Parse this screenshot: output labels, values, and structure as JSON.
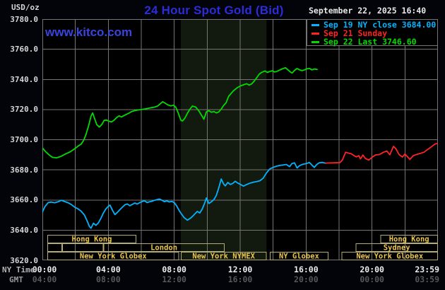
{
  "header": {
    "title": "24 Hour Spot Gold (Bid)",
    "site": "www.kitco.com"
  },
  "legend": {
    "date": "September 22, 2025 16:40",
    "entries": [
      {
        "label": "Sep 19 NY close 3684.00",
        "series": "sep19"
      },
      {
        "label": "Sep 21 Sunday",
        "series": "sep21"
      },
      {
        "label": "Sep 22 Last 3746.60",
        "series": "sep22"
      }
    ]
  },
  "y_axis": {
    "unit": "USD/oz",
    "min": 3620,
    "max": 3780,
    "step": 20
  },
  "x_axis": {
    "hours_span": 24,
    "grid_step_hours": 2,
    "label_hours": [
      0,
      4,
      8,
      12,
      16,
      20,
      24
    ],
    "rows": [
      {
        "caption": "NY Time",
        "labels": [
          "00:00",
          "04:00",
          "08:00",
          "12:00",
          "16:00",
          "20:00",
          "23:59"
        ]
      },
      {
        "caption": "GMT",
        "labels": [
          "04:00",
          "08:00",
          "12:00",
          "16:00",
          "20:00",
          "00:00",
          "03:59"
        ]
      }
    ]
  },
  "sessions": {
    "rows": [
      {
        "boxes": [
          {
            "label": "Hong Kong",
            "start": 0.3,
            "end": 5.7
          },
          {
            "label": "Hong Kong",
            "start": 20.5,
            "end": 24
          }
        ]
      },
      {
        "boxes": [
          {
            "label": "",
            "start": 0.3,
            "end": 1.2
          },
          {
            "label": "",
            "start": 1.2,
            "end": 3.7
          },
          {
            "label": "London",
            "start": 3.7,
            "end": 11.05
          },
          {
            "label": "Sydney",
            "start": 19.0,
            "end": 24
          }
        ]
      },
      {
        "boxes": [
          {
            "label": "New York Globex",
            "start": 0.3,
            "end": 8.3
          },
          {
            "label": "New York NYMEX",
            "start": 8.4,
            "end": 13.6
          },
          {
            "label": "NY Globex",
            "start": 13.8,
            "end": 17.35
          },
          {
            "label": "New York Globex",
            "start": 18.15,
            "end": 24
          }
        ]
      }
    ]
  },
  "highlight_band": {
    "start_hour": 8.4,
    "end_hour": 13.6
  },
  "chart_data": {
    "type": "line",
    "title": "24 Hour Spot Gold (Bid)",
    "ylabel": "USD/oz",
    "xlabel": "NY Time (hours)",
    "x_range": [
      0,
      24
    ],
    "y_range": [
      3620,
      3780
    ],
    "grid": true,
    "legend_position": "top-right",
    "series": [
      {
        "name": "Sep 19 NY close",
        "close_value": 3684.0,
        "color_key": "sep19",
        "points": [
          [
            0,
            3652
          ],
          [
            0.15,
            3655.5
          ],
          [
            0.35,
            3658.3
          ],
          [
            0.55,
            3658.6
          ],
          [
            0.75,
            3658.2
          ],
          [
            0.95,
            3658.8
          ],
          [
            1.15,
            3659.8
          ],
          [
            1.35,
            3659
          ],
          [
            1.55,
            3658.2
          ],
          [
            1.75,
            3657
          ],
          [
            1.95,
            3655.3
          ],
          [
            2.15,
            3654.2
          ],
          [
            2.35,
            3652.6
          ],
          [
            2.55,
            3650
          ],
          [
            2.7,
            3646.5
          ],
          [
            2.85,
            3642.5
          ],
          [
            2.95,
            3641.3
          ],
          [
            3.1,
            3644.6
          ],
          [
            3.25,
            3643.2
          ],
          [
            3.4,
            3644.8
          ],
          [
            3.55,
            3647.8
          ],
          [
            3.7,
            3651.3
          ],
          [
            3.85,
            3654
          ],
          [
            4,
            3655.8
          ],
          [
            4.1,
            3656.6
          ],
          [
            4.25,
            3653.2
          ],
          [
            4.4,
            3650.3
          ],
          [
            4.55,
            3651.8
          ],
          [
            4.7,
            3653.6
          ],
          [
            4.85,
            3655.2
          ],
          [
            5,
            3656.8
          ],
          [
            5.15,
            3657.4
          ],
          [
            5.3,
            3656.2
          ],
          [
            5.45,
            3657
          ],
          [
            5.6,
            3658
          ],
          [
            5.75,
            3657.3
          ],
          [
            5.9,
            3658.2
          ],
          [
            6.05,
            3659
          ],
          [
            6.2,
            3659.5
          ],
          [
            6.35,
            3658.3
          ],
          [
            6.5,
            3658.8
          ],
          [
            6.65,
            3659.2
          ],
          [
            6.8,
            3659.8
          ],
          [
            6.95,
            3660.2
          ],
          [
            7.1,
            3660.6
          ],
          [
            7.25,
            3659.9
          ],
          [
            7.4,
            3658.9
          ],
          [
            7.55,
            3659.4
          ],
          [
            7.7,
            3658.7
          ],
          [
            7.85,
            3659.1
          ],
          [
            8,
            3658.3
          ],
          [
            8.15,
            3656
          ],
          [
            8.3,
            3653
          ],
          [
            8.45,
            3650.5
          ],
          [
            8.6,
            3648.3
          ],
          [
            8.8,
            3646.6
          ],
          [
            9,
            3648
          ],
          [
            9.2,
            3650.2
          ],
          [
            9.4,
            3652.4
          ],
          [
            9.55,
            3651.4
          ],
          [
            9.7,
            3654
          ],
          [
            9.85,
            3658
          ],
          [
            9.95,
            3661.4
          ],
          [
            10.1,
            3657.7
          ],
          [
            10.25,
            3658.8
          ],
          [
            10.4,
            3660.2
          ],
          [
            10.55,
            3663
          ],
          [
            10.7,
            3668
          ],
          [
            10.85,
            3673.9
          ],
          [
            11,
            3670.5
          ],
          [
            11.1,
            3669.4
          ],
          [
            11.25,
            3671.6
          ],
          [
            11.4,
            3670.3
          ],
          [
            11.55,
            3671
          ],
          [
            11.7,
            3672.4
          ],
          [
            11.85,
            3671.3
          ],
          [
            12,
            3670.4
          ],
          [
            12.2,
            3669.2
          ],
          [
            12.4,
            3670.3
          ],
          [
            12.6,
            3671.2
          ],
          [
            12.8,
            3671.8
          ],
          [
            13,
            3672.2
          ],
          [
            13.2,
            3672.8
          ],
          [
            13.4,
            3674.5
          ],
          [
            13.6,
            3678
          ],
          [
            13.8,
            3680.6
          ],
          [
            14,
            3681.6
          ],
          [
            14.2,
            3682.4
          ],
          [
            14.4,
            3682.9
          ],
          [
            14.6,
            3683.2
          ],
          [
            14.8,
            3683.6
          ],
          [
            15,
            3682.1
          ],
          [
            15.15,
            3684.3
          ],
          [
            15.3,
            3684.6
          ],
          [
            15.45,
            3681.3
          ],
          [
            15.6,
            3682.8
          ],
          [
            15.8,
            3683.7
          ],
          [
            16,
            3684.1
          ],
          [
            16.2,
            3684.9
          ],
          [
            16.35,
            3683.2
          ],
          [
            16.5,
            3681.6
          ],
          [
            16.65,
            3683.6
          ],
          [
            16.8,
            3684.7
          ],
          [
            17,
            3684.9
          ],
          [
            17.2,
            3684.4
          ]
        ]
      },
      {
        "name": "Sep 21 Sunday",
        "color_key": "sep21",
        "points": [
          [
            17.2,
            3684.5
          ],
          [
            17.6,
            3684.6
          ],
          [
            18.05,
            3684.8
          ],
          [
            18.2,
            3686.5
          ],
          [
            18.4,
            3691.7
          ],
          [
            18.55,
            3691.2
          ],
          [
            18.75,
            3690.6
          ],
          [
            18.9,
            3689.5
          ],
          [
            19.05,
            3688.6
          ],
          [
            19.2,
            3689.4
          ],
          [
            19.3,
            3687.3
          ],
          [
            19.45,
            3689.8
          ],
          [
            19.6,
            3687.5
          ],
          [
            19.8,
            3686.5
          ],
          [
            20,
            3688.3
          ],
          [
            20.2,
            3689.8
          ],
          [
            20.45,
            3690.2
          ],
          [
            20.7,
            3691.7
          ],
          [
            20.9,
            3692.5
          ],
          [
            21.08,
            3690
          ],
          [
            21.3,
            3695.6
          ],
          [
            21.45,
            3694
          ],
          [
            21.65,
            3690
          ],
          [
            21.85,
            3688.5
          ],
          [
            22,
            3690.5
          ],
          [
            22.3,
            3686.9
          ],
          [
            22.5,
            3689.4
          ],
          [
            22.7,
            3690.2
          ],
          [
            22.95,
            3691
          ],
          [
            23.15,
            3691.7
          ],
          [
            23.35,
            3693.3
          ],
          [
            23.55,
            3694.9
          ],
          [
            23.8,
            3697
          ],
          [
            23.98,
            3697.6
          ]
        ]
      },
      {
        "name": "Sep 22 Last",
        "last_value": 3746.6,
        "color_key": "sep22",
        "points": [
          [
            0,
            3694.5
          ],
          [
            0.2,
            3692
          ],
          [
            0.4,
            3690
          ],
          [
            0.6,
            3688.3
          ],
          [
            0.85,
            3688
          ],
          [
            1.1,
            3688.8
          ],
          [
            1.4,
            3690.5
          ],
          [
            1.7,
            3692
          ],
          [
            2,
            3694.3
          ],
          [
            2.2,
            3696
          ],
          [
            2.35,
            3697
          ],
          [
            2.5,
            3699.5
          ],
          [
            2.65,
            3703.5
          ],
          [
            2.8,
            3709
          ],
          [
            2.95,
            3715.5
          ],
          [
            3.05,
            3717.8
          ],
          [
            3.15,
            3714.5
          ],
          [
            3.3,
            3710
          ],
          [
            3.45,
            3708.4
          ],
          [
            3.6,
            3710
          ],
          [
            3.75,
            3712.8
          ],
          [
            3.9,
            3713
          ],
          [
            4.05,
            3712.2
          ],
          [
            4.2,
            3711.8
          ],
          [
            4.35,
            3713
          ],
          [
            4.5,
            3714.6
          ],
          [
            4.65,
            3715.8
          ],
          [
            4.8,
            3715.1
          ],
          [
            4.95,
            3716
          ],
          [
            5.1,
            3716.8
          ],
          [
            5.25,
            3717.6
          ],
          [
            5.4,
            3718.6
          ],
          [
            5.6,
            3719.3
          ],
          [
            5.8,
            3719.7
          ],
          [
            6,
            3720
          ],
          [
            6.2,
            3720.3
          ],
          [
            6.4,
            3720.8
          ],
          [
            6.6,
            3721.2
          ],
          [
            6.8,
            3721.6
          ],
          [
            7,
            3722.4
          ],
          [
            7.15,
            3723.8
          ],
          [
            7.3,
            3725.2
          ],
          [
            7.45,
            3724.2
          ],
          [
            7.6,
            3723.2
          ],
          [
            7.8,
            3722.4
          ],
          [
            7.95,
            3722.9
          ],
          [
            8.1,
            3721.5
          ],
          [
            8.25,
            3717.5
          ],
          [
            8.4,
            3713
          ],
          [
            8.5,
            3712.4
          ],
          [
            8.65,
            3714.3
          ],
          [
            8.8,
            3717.5
          ],
          [
            8.95,
            3720.2
          ],
          [
            9.1,
            3722.3
          ],
          [
            9.3,
            3721.7
          ],
          [
            9.5,
            3719
          ],
          [
            9.65,
            3716.3
          ],
          [
            9.8,
            3713.6
          ],
          [
            9.95,
            3718.5
          ],
          [
            10.1,
            3719.3
          ],
          [
            10.25,
            3718.2
          ],
          [
            10.4,
            3718.7
          ],
          [
            10.55,
            3717.8
          ],
          [
            10.7,
            3718.4
          ],
          [
            10.85,
            3720.3
          ],
          [
            11,
            3722.8
          ],
          [
            11.15,
            3724.6
          ],
          [
            11.3,
            3728.8
          ],
          [
            11.45,
            3730.7
          ],
          [
            11.6,
            3732.5
          ],
          [
            11.8,
            3734.3
          ],
          [
            12,
            3735.6
          ],
          [
            12.2,
            3736.4
          ],
          [
            12.4,
            3737.1
          ],
          [
            12.55,
            3736.2
          ],
          [
            12.7,
            3737
          ],
          [
            12.85,
            3738.8
          ],
          [
            13,
            3741
          ],
          [
            13.15,
            3743.4
          ],
          [
            13.3,
            3744.6
          ],
          [
            13.5,
            3745.6
          ],
          [
            13.65,
            3744.6
          ],
          [
            13.8,
            3745.3
          ],
          [
            13.95,
            3745.7
          ],
          [
            14.1,
            3744.9
          ],
          [
            14.25,
            3745.4
          ],
          [
            14.4,
            3746.2
          ],
          [
            14.6,
            3747.2
          ],
          [
            14.75,
            3747.7
          ],
          [
            14.9,
            3746.3
          ],
          [
            15.05,
            3744.9
          ],
          [
            15.15,
            3744.2
          ],
          [
            15.3,
            3746
          ],
          [
            15.45,
            3747.2
          ],
          [
            15.6,
            3746.4
          ],
          [
            15.75,
            3745.8
          ],
          [
            15.9,
            3746.3
          ],
          [
            16.05,
            3747
          ],
          [
            16.2,
            3747.3
          ],
          [
            16.35,
            3746.3
          ],
          [
            16.5,
            3746.9
          ],
          [
            16.67,
            3746.6
          ]
        ]
      }
    ]
  },
  "colors": {
    "sep19": "#00b4ff",
    "sep21": "#ff2424",
    "sep22": "#00dc00",
    "title_blue": "#2c2cd8",
    "site_blue": "#3a44de",
    "date_text": "#e8e8e8",
    "grid": "#757575",
    "plot_bg": "#000000",
    "page_bg": "#03030a",
    "band": "#12190e",
    "session_border": "#b3ac74",
    "session_text": "#eac54e",
    "tick_text": "#d6d6d6",
    "x_label_ny": "#ececec",
    "x_label_gmt": "#575757",
    "caption_ny": "#b3b3b3",
    "caption_gmt": "#999999"
  }
}
